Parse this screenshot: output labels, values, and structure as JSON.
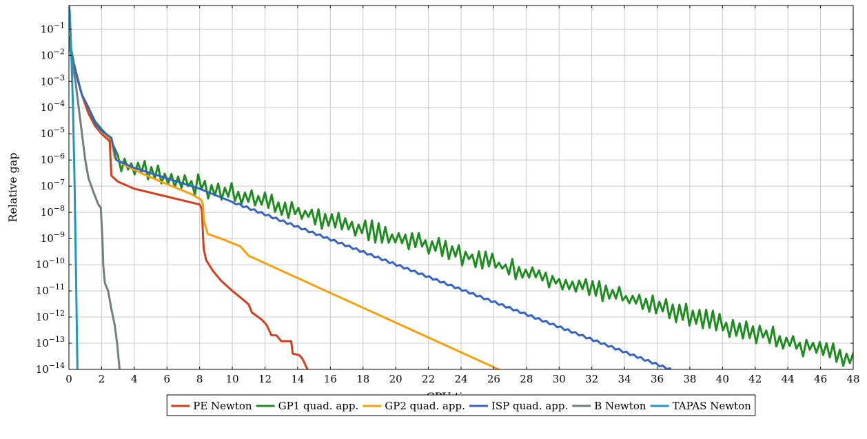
{
  "chart_data": {
    "type": "line",
    "title": "",
    "xlabel": "CPU time, s.",
    "ylabel": "Relative gap",
    "yscale": "log",
    "xlim": [
      0,
      48
    ],
    "ylim": [
      1e-14,
      0.8
    ],
    "grid": true,
    "legend_position": "bottom-center",
    "x_ticks": [
      0,
      2,
      4,
      6,
      8,
      10,
      12,
      14,
      16,
      18,
      20,
      22,
      24,
      26,
      28,
      30,
      32,
      34,
      36,
      38,
      40,
      42,
      44,
      46,
      48
    ],
    "y_ticks": [
      {
        "value": 0.1,
        "mantissa": "10",
        "exponent": "−1"
      },
      {
        "value": 0.01,
        "mantissa": "10",
        "exponent": "−2"
      },
      {
        "value": 0.001,
        "mantissa": "10",
        "exponent": "−3"
      },
      {
        "value": 0.0001,
        "mantissa": "10",
        "exponent": "−4"
      },
      {
        "value": 1e-05,
        "mantissa": "10",
        "exponent": "−5"
      },
      {
        "value": 1e-06,
        "mantissa": "10",
        "exponent": "−6"
      },
      {
        "value": 1e-07,
        "mantissa": "10",
        "exponent": "−7"
      },
      {
        "value": 1e-08,
        "mantissa": "10",
        "exponent": "−8"
      },
      {
        "value": 1e-09,
        "mantissa": "10",
        "exponent": "−9"
      },
      {
        "value": 1e-10,
        "mantissa": "10",
        "exponent": "−10"
      },
      {
        "value": 1e-11,
        "mantissa": "10",
        "exponent": "−11"
      },
      {
        "value": 1e-12,
        "mantissa": "10",
        "exponent": "−12"
      },
      {
        "value": 1e-13,
        "mantissa": "10",
        "exponent": "−13"
      },
      {
        "value": 1e-14,
        "mantissa": "10",
        "exponent": "−14"
      }
    ],
    "series": [
      {
        "name": "PE Newton",
        "color": "#d63d1c",
        "points": [
          [
            0,
            0.04
          ],
          [
            0.3,
            0.004
          ],
          [
            0.8,
            0.0003
          ],
          [
            1.2,
            6e-05
          ],
          [
            1.6,
            2e-05
          ],
          [
            2.0,
            1e-05
          ],
          [
            2.4,
            6e-06
          ],
          [
            2.5,
            5e-06
          ],
          [
            2.55,
            1e-06
          ],
          [
            2.6,
            2.5e-07
          ],
          [
            3.0,
            1.5e-07
          ],
          [
            4.0,
            8e-08
          ],
          [
            6.0,
            4e-08
          ],
          [
            8.0,
            2e-08
          ],
          [
            8.1,
            1.5e-08
          ],
          [
            8.15,
            1e-08
          ],
          [
            8.2,
            1.5e-09
          ],
          [
            8.25,
            4e-10
          ],
          [
            8.4,
            1.5e-10
          ],
          [
            8.8,
            6e-11
          ],
          [
            9.3,
            2.5e-11
          ],
          [
            10.0,
            1e-11
          ],
          [
            10.6,
            5e-12
          ],
          [
            11.0,
            3e-12
          ],
          [
            11.2,
            1.5e-12
          ],
          [
            11.8,
            8e-13
          ],
          [
            12.1,
            5e-13
          ],
          [
            12.4,
            2e-13
          ],
          [
            12.7,
            2e-13
          ],
          [
            13.0,
            1.2e-13
          ],
          [
            13.6,
            1.2e-13
          ],
          [
            13.7,
            4e-14
          ],
          [
            14.1,
            3.5e-14
          ],
          [
            14.3,
            2.5e-14
          ],
          [
            14.6,
            1e-14
          ]
        ]
      },
      {
        "name": "GP1 quad. app.",
        "color": "#1e8c1e",
        "start": [
          [
            0,
            0.05
          ],
          [
            0.3,
            0.005
          ],
          [
            0.8,
            0.0003
          ],
          [
            1.2,
            0.0001
          ],
          [
            1.6,
            3e-05
          ],
          [
            2.0,
            1.5e-05
          ],
          [
            2.5,
            7e-06
          ],
          [
            3.0,
            1.5e-06
          ]
        ],
        "trend": {
          "x_start": 3.0,
          "x_end": 48.0,
          "log10_y_start": -6.15,
          "log10_y_end": -13.6,
          "points": 220
        },
        "oscillation": {
          "amplitude_min": 0.15,
          "amplitude_max": 0.85,
          "seed": 7
        }
      },
      {
        "name": "GP2 quad. app.",
        "color": "#f99f0a",
        "points": [
          [
            0,
            0.04
          ],
          [
            0.3,
            0.004
          ],
          [
            0.8,
            0.0003
          ],
          [
            1.2,
            0.0001
          ],
          [
            1.6,
            2.5e-05
          ],
          [
            2.0,
            1.2e-05
          ],
          [
            2.6,
            6e-06
          ],
          [
            2.8,
            1.2e-06
          ],
          [
            3.5,
            6e-07
          ],
          [
            4.5,
            3e-07
          ],
          [
            6.0,
            1.2e-07
          ],
          [
            7.5,
            5e-08
          ],
          [
            8.1,
            3e-08
          ],
          [
            8.2,
            2e-08
          ],
          [
            8.25,
            5e-09
          ],
          [
            8.5,
            1.5e-09
          ],
          [
            9.5,
            9e-10
          ],
          [
            10.5,
            5e-10
          ],
          [
            11.0,
            2.2e-10
          ],
          [
            26.3,
            1e-14
          ]
        ]
      },
      {
        "name": "ISP quad. app.",
        "color": "#3465c4",
        "points": [
          [
            0,
            0.04
          ],
          [
            0.3,
            0.004
          ],
          [
            0.8,
            0.0003
          ],
          [
            1.2,
            0.0001
          ],
          [
            1.6,
            2.5e-05
          ],
          [
            2.0,
            1.3e-05
          ],
          [
            2.6,
            7e-06
          ],
          [
            2.9,
            1e-06
          ],
          [
            4.0,
            5e-07
          ],
          [
            6.0,
            2e-07
          ],
          [
            8.0,
            8e-08
          ],
          [
            10.0,
            2.5e-08
          ]
        ],
        "trend": {
          "x_start": 10.0,
          "x_end": 36.8,
          "log10_y_start": -7.6,
          "log10_y_end": -14.0,
          "points": 120
        },
        "oscillation": {
          "amplitude_min": 0.08,
          "amplitude_max": 0.08,
          "seed": 3
        }
      },
      {
        "name": "B Newton",
        "color": "#6e7f80",
        "points": [
          [
            0,
            0.04
          ],
          [
            0.2,
            0.005
          ],
          [
            0.4,
            0.001
          ],
          [
            0.6,
            0.0001
          ],
          [
            0.8,
            1e-05
          ],
          [
            1.0,
            1e-06
          ],
          [
            1.2,
            2e-07
          ],
          [
            1.5,
            6e-08
          ],
          [
            1.8,
            2e-08
          ],
          [
            1.95,
            1.5e-08
          ],
          [
            2.05,
            1e-09
          ],
          [
            2.1,
            1e-10
          ],
          [
            2.2,
            2e-11
          ],
          [
            2.4,
            1e-11
          ],
          [
            2.6,
            2e-12
          ],
          [
            2.8,
            5e-13
          ],
          [
            2.95,
            1e-13
          ],
          [
            3.1,
            1e-14
          ]
        ]
      },
      {
        "name": "TAPAS Newton",
        "color": "#1e97bf",
        "points": [
          [
            0,
            0.8
          ],
          [
            0.05,
            0.5
          ],
          [
            0.15,
            0.01
          ],
          [
            0.25,
            0.0001
          ],
          [
            0.35,
            1e-07
          ],
          [
            0.45,
            1e-11
          ],
          [
            0.52,
            1e-14
          ]
        ]
      }
    ]
  }
}
